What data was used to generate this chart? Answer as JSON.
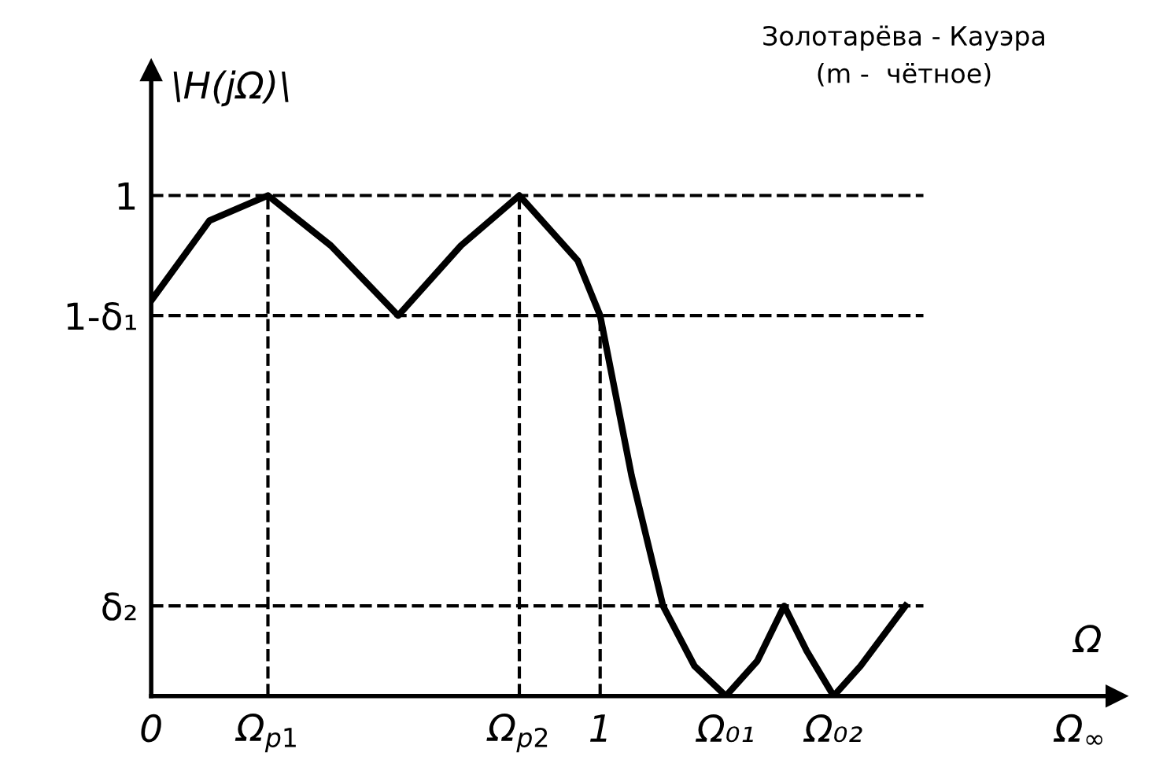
{
  "chart_data": {
    "type": "line",
    "ylim": [
      0,
      1.25
    ],
    "yticks": [
      {
        "value": 0.18,
        "label": "δ₂"
      },
      {
        "value": 0.76,
        "label": "1-δ₁"
      },
      1
    ],
    "title": "Золотарёва - Кауэра",
    "subtitle": "(m -  чётное)",
    "ylabel": "\\H(jΩ)\\",
    "xlabel": "Ω",
    "x": [
      0,
      0.13,
      0.26,
      0.4,
      0.55,
      0.69,
      0.82,
      0.95,
      1.0,
      1.07,
      1.14,
      1.21,
      1.28,
      1.35,
      1.41,
      1.46,
      1.52,
      1.58,
      1.68
    ],
    "series": [
      {
        "color": "#000000",
        "values": [
          0.79,
          0.95,
          1.0,
          0.9,
          0.76,
          0.9,
          1.0,
          0.87,
          0.76,
          0.44,
          0.18,
          0.06,
          0.0,
          0.07,
          0.18,
          0.09,
          0.0,
          0.06,
          0.18
        ]
      }
    ],
    "xlim": [
      0,
      2.15
    ],
    "xticks": [
      0,
      {
        "value": 0.26,
        "label": "Ω$_{p1}$"
      },
      {
        "value": 0.82,
        "label": "Ω$_{p2}$"
      },
      1,
      {
        "value": 1.28,
        "label": "Ω₀₁"
      },
      {
        "value": 1.52,
        "label": "Ω₀₂"
      },
      {
        "value": 2.07,
        "label": "Ω$_{∞}$"
      }
    ],
    "ref_lines": [
      {
        "axis": "y",
        "value": 1,
        "line_style": "dashed"
      },
      {
        "axis": "y",
        "value": 0.76,
        "line_style": "dashed"
      },
      {
        "axis": "y",
        "value": 0.18,
        "line_style": "dashed"
      },
      {
        "axis": "x",
        "value": 0.26,
        "line_style": "dashed"
      },
      {
        "axis": "x",
        "value": 0.82,
        "line_style": "dashed"
      },
      {
        "axis": "x",
        "value": 1,
        "line_style": "dashed"
      }
    ],
    "grid": false,
    "legend": false,
    "marker": "none",
    "line_style": "solid"
  }
}
